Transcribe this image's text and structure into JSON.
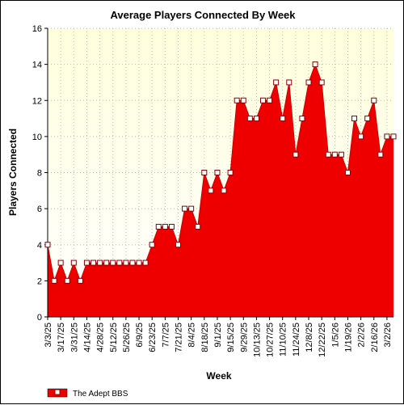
{
  "chart_data": {
    "type": "area",
    "title": "Average Players Connected By Week",
    "xlabel": "Week",
    "ylabel": "Players Connected",
    "ylim": [
      0,
      16
    ],
    "y_ticks": [
      0,
      2,
      4,
      6,
      8,
      10,
      12,
      14,
      16
    ],
    "grid": true,
    "legend_position": "bottom-left",
    "colors": {
      "plot_background_top": "#ffffdd",
      "plot_background_bottom": "#ffffff",
      "area_fill": "#ee0000",
      "line": "#cc0000",
      "marker_fill": "#ffffff",
      "grid": "#bbbbaa"
    },
    "x_tick_labels": [
      "3/3/25",
      "3/17/25",
      "3/31/25",
      "4/14/25",
      "4/28/25",
      "5/12/25",
      "5/26/25",
      "6/9/25",
      "6/23/25",
      "7/7/25",
      "7/21/25",
      "8/4/25",
      "8/18/25",
      "9/1/25",
      "9/15/25",
      "9/29/25",
      "10/13/25",
      "10/27/25",
      "11/10/25",
      "11/24/25",
      "12/8/25",
      "12/22/25",
      "1/5/26",
      "1/19/26",
      "2/2/26",
      "2/16/26",
      "3/2/26"
    ],
    "series": [
      {
        "name": "The Adept BBS",
        "x": [
          "3/3/25",
          "3/10/25",
          "3/17/25",
          "3/24/25",
          "3/31/25",
          "4/7/25",
          "4/14/25",
          "4/21/25",
          "4/28/25",
          "5/5/25",
          "5/12/25",
          "5/19/25",
          "5/26/25",
          "6/2/25",
          "6/9/25",
          "6/16/25",
          "6/23/25",
          "6/30/25",
          "7/7/25",
          "7/14/25",
          "7/21/25",
          "7/28/25",
          "8/4/25",
          "8/11/25",
          "8/18/25",
          "8/25/25",
          "9/1/25",
          "9/8/25",
          "9/15/25",
          "9/22/25",
          "9/29/25",
          "10/6/25",
          "10/13/25",
          "10/20/25",
          "10/27/25",
          "11/3/25",
          "11/10/25",
          "11/17/25",
          "11/24/25",
          "12/1/25",
          "12/8/25",
          "12/15/25",
          "12/22/25",
          "12/29/25",
          "1/5/26",
          "1/12/26",
          "1/19/26",
          "1/26/26",
          "2/2/26",
          "2/9/26",
          "2/16/26",
          "2/23/26",
          "3/2/26",
          "3/9/26"
        ],
        "values": [
          4,
          2,
          3,
          2,
          3,
          2,
          3,
          3,
          3,
          3,
          3,
          3,
          3,
          3,
          3,
          3,
          4,
          5,
          5,
          5,
          4,
          6,
          6,
          5,
          8,
          7,
          8,
          7,
          8,
          12,
          12,
          11,
          11,
          12,
          12,
          13,
          11,
          13,
          9,
          11,
          13,
          14,
          13,
          9,
          9,
          9,
          8,
          11,
          10,
          11,
          12,
          9,
          10,
          10
        ]
      }
    ]
  }
}
